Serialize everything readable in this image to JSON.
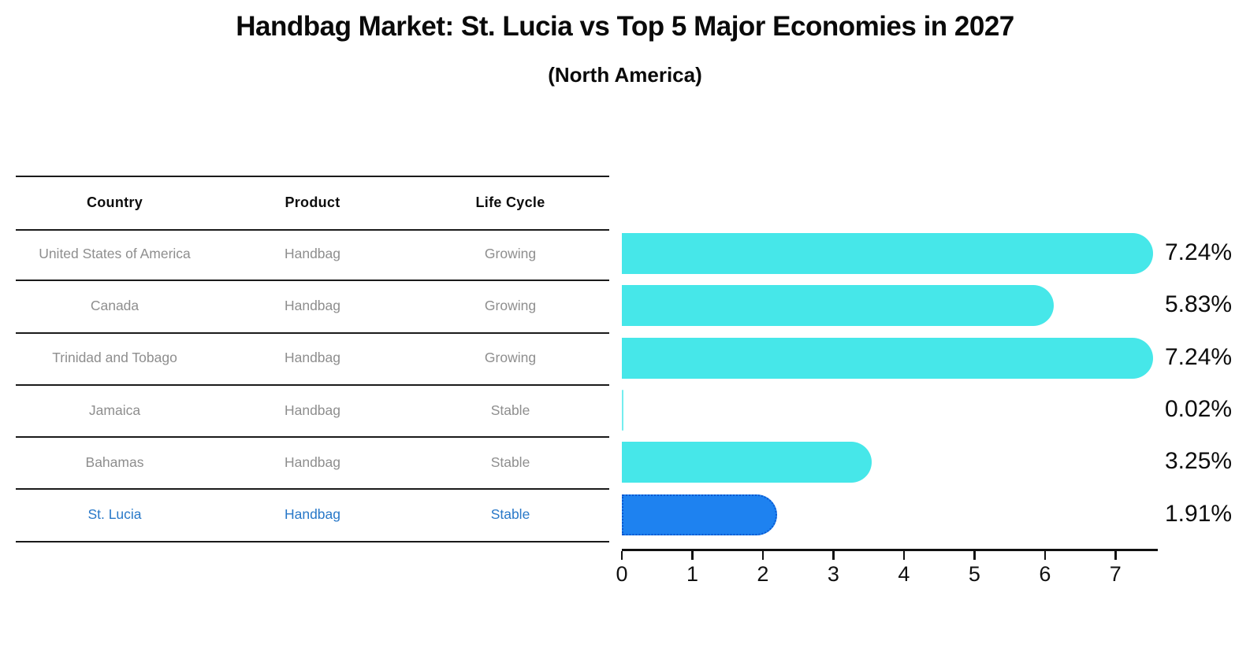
{
  "title": "Handbag Market: St. Lucia vs Top 5 Major Economies in 2027",
  "subtitle": "(North America)",
  "table": {
    "columns": [
      "Country",
      "Product",
      "Life Cycle"
    ],
    "rows": [
      {
        "country": "United States of America",
        "product": "Handbag",
        "life_cycle": "Growing",
        "highlight": false
      },
      {
        "country": "Canada",
        "product": "Handbag",
        "life_cycle": "Growing",
        "highlight": false
      },
      {
        "country": "Trinidad and Tobago",
        "product": "Handbag",
        "life_cycle": "Growing",
        "highlight": false
      },
      {
        "country": "Jamaica",
        "product": "Handbag",
        "life_cycle": "Stable",
        "highlight": false
      },
      {
        "country": "Bahamas",
        "product": "Handbag",
        "life_cycle": "Stable",
        "highlight": false
      },
      {
        "country": "St. Lucia",
        "product": "Handbag",
        "life_cycle": "Stable",
        "highlight": true
      }
    ]
  },
  "chart_data": {
    "type": "bar",
    "orientation": "horizontal",
    "categories": [
      "United States of America",
      "Canada",
      "Trinidad and Tobago",
      "Jamaica",
      "Bahamas",
      "St. Lucia"
    ],
    "values": [
      7.24,
      5.83,
      7.24,
      0.02,
      3.25,
      1.91
    ],
    "value_labels": [
      "7.24%",
      "5.83%",
      "7.24%",
      "0.02%",
      "3.25%",
      "1.91%"
    ],
    "title": "Handbag Market: St. Lucia vs Top 5 Major Economies in 2027",
    "xlabel": "",
    "ylabel": "",
    "xlim": [
      0,
      7.6
    ],
    "x_ticks": [
      0,
      1,
      2,
      3,
      4,
      5,
      6,
      7
    ],
    "grid": false,
    "legend": "none",
    "highlight_index": 5
  },
  "colors": {
    "bar": "#46E7E9",
    "highlight_bar": "#1E82F0",
    "highlight_border": "#0A58D0",
    "highlight_text": "#2878C8",
    "row_text": "#8e8e8e",
    "line": "#1a1a1a",
    "axis": "#111111"
  }
}
